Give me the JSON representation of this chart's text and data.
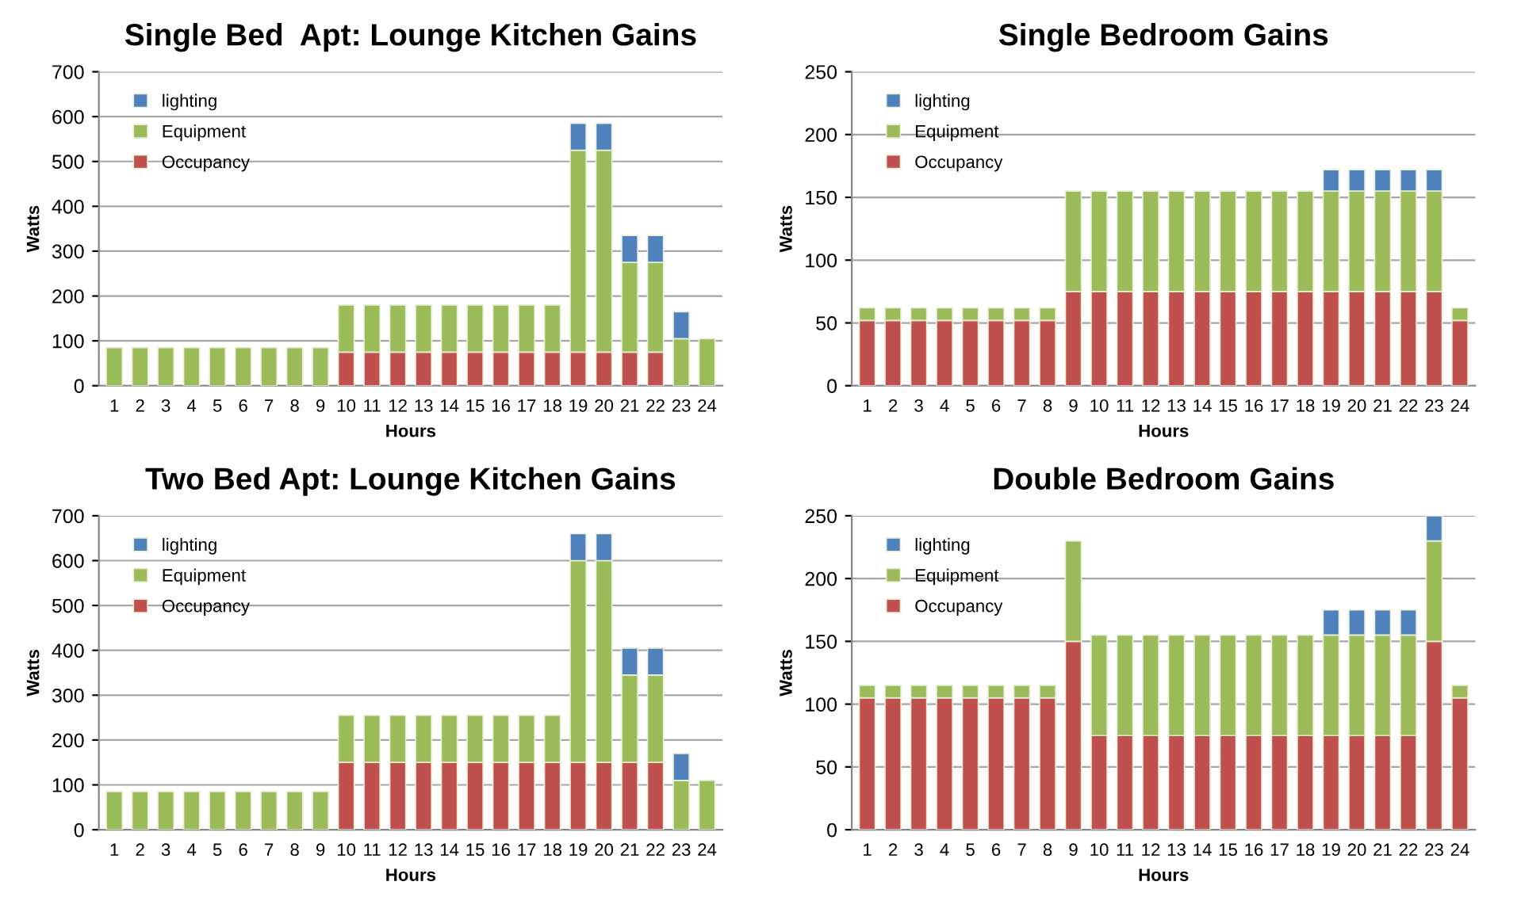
{
  "chart_data": [
    {
      "type": "bar",
      "title": "Single Bed  Apt: Lounge Kitchen Gains",
      "xlabel": "Hours",
      "ylabel": "Watts",
      "stacked": true,
      "grid": "y",
      "legend": "top left",
      "ylim": [
        0,
        700
      ],
      "yticks": [
        0,
        100,
        200,
        300,
        400,
        500,
        600,
        700
      ],
      "categories": [
        "1",
        "2",
        "3",
        "4",
        "5",
        "6",
        "7",
        "8",
        "9",
        "10",
        "11",
        "12",
        "13",
        "14",
        "15",
        "16",
        "17",
        "18",
        "19",
        "20",
        "21",
        "22",
        "23",
        "24"
      ],
      "series": [
        {
          "name": "Occupancy",
          "color": "#c0504d",
          "values": [
            0,
            0,
            0,
            0,
            0,
            0,
            0,
            0,
            0,
            75,
            75,
            75,
            75,
            75,
            75,
            75,
            75,
            75,
            75,
            75,
            75,
            75,
            0,
            0
          ]
        },
        {
          "name": "Equipment",
          "color": "#9bbb59",
          "values": [
            85,
            85,
            85,
            85,
            85,
            85,
            85,
            85,
            85,
            105,
            105,
            105,
            105,
            105,
            105,
            105,
            105,
            105,
            450,
            450,
            200,
            200,
            105,
            105
          ]
        },
        {
          "name": "lighting",
          "color": "#4f81bd",
          "values": [
            0,
            0,
            0,
            0,
            0,
            0,
            0,
            0,
            0,
            0,
            0,
            0,
            0,
            0,
            0,
            0,
            0,
            0,
            60,
            60,
            60,
            60,
            60,
            0
          ]
        }
      ]
    },
    {
      "type": "bar",
      "title": "Single Bedroom Gains",
      "xlabel": "Hours",
      "ylabel": "Watts",
      "stacked": true,
      "grid": "y",
      "legend": "top left",
      "ylim": [
        0,
        250
      ],
      "yticks": [
        0,
        50,
        100,
        150,
        200,
        250
      ],
      "categories": [
        "1",
        "2",
        "3",
        "4",
        "5",
        "6",
        "7",
        "8",
        "9",
        "10",
        "11",
        "12",
        "13",
        "14",
        "15",
        "16",
        "17",
        "18",
        "19",
        "20",
        "21",
        "22",
        "23",
        "24"
      ],
      "series": [
        {
          "name": "Occupancy",
          "color": "#c0504d",
          "values": [
            52,
            52,
            52,
            52,
            52,
            52,
            52,
            52,
            75,
            75,
            75,
            75,
            75,
            75,
            75,
            75,
            75,
            75,
            75,
            75,
            75,
            75,
            75,
            52
          ]
        },
        {
          "name": "Equipment",
          "color": "#9bbb59",
          "values": [
            10,
            10,
            10,
            10,
            10,
            10,
            10,
            10,
            80,
            80,
            80,
            80,
            80,
            80,
            80,
            80,
            80,
            80,
            80,
            80,
            80,
            80,
            80,
            10
          ]
        },
        {
          "name": "lighting",
          "color": "#4f81bd",
          "values": [
            0,
            0,
            0,
            0,
            0,
            0,
            0,
            0,
            0,
            0,
            0,
            0,
            0,
            0,
            0,
            0,
            0,
            0,
            17,
            17,
            17,
            17,
            17,
            0
          ]
        }
      ]
    },
    {
      "type": "bar",
      "title": "Two Bed Apt: Lounge Kitchen Gains",
      "xlabel": "Hours",
      "ylabel": "Watts",
      "stacked": true,
      "grid": "y",
      "legend": "top left",
      "ylim": [
        0,
        700
      ],
      "yticks": [
        0,
        100,
        200,
        300,
        400,
        500,
        600,
        700
      ],
      "categories": [
        "1",
        "2",
        "3",
        "4",
        "5",
        "6",
        "7",
        "8",
        "9",
        "10",
        "11",
        "12",
        "13",
        "14",
        "15",
        "16",
        "17",
        "18",
        "19",
        "20",
        "21",
        "22",
        "23",
        "24"
      ],
      "series": [
        {
          "name": "Occupancy",
          "color": "#c0504d",
          "values": [
            0,
            0,
            0,
            0,
            0,
            0,
            0,
            0,
            0,
            150,
            150,
            150,
            150,
            150,
            150,
            150,
            150,
            150,
            150,
            150,
            150,
            150,
            0,
            0
          ]
        },
        {
          "name": "Equipment",
          "color": "#9bbb59",
          "values": [
            85,
            85,
            85,
            85,
            85,
            85,
            85,
            85,
            85,
            105,
            105,
            105,
            105,
            105,
            105,
            105,
            105,
            105,
            450,
            450,
            195,
            195,
            110,
            110
          ]
        },
        {
          "name": "lighting",
          "color": "#4f81bd",
          "values": [
            0,
            0,
            0,
            0,
            0,
            0,
            0,
            0,
            0,
            0,
            0,
            0,
            0,
            0,
            0,
            0,
            0,
            0,
            60,
            60,
            60,
            60,
            60,
            0
          ]
        }
      ]
    },
    {
      "type": "bar",
      "title": "Double Bedroom Gains",
      "xlabel": "Hours",
      "ylabel": "Watts",
      "stacked": true,
      "grid": "y",
      "legend": "top left",
      "ylim": [
        0,
        250
      ],
      "yticks": [
        0,
        50,
        100,
        150,
        200,
        250
      ],
      "categories": [
        "1",
        "2",
        "3",
        "4",
        "5",
        "6",
        "7",
        "8",
        "9",
        "10",
        "11",
        "12",
        "13",
        "14",
        "15",
        "16",
        "17",
        "18",
        "19",
        "20",
        "21",
        "22",
        "23",
        "24"
      ],
      "series": [
        {
          "name": "Occupancy",
          "color": "#c0504d",
          "values": [
            105,
            105,
            105,
            105,
            105,
            105,
            105,
            105,
            150,
            75,
            75,
            75,
            75,
            75,
            75,
            75,
            75,
            75,
            75,
            75,
            75,
            75,
            150,
            105
          ]
        },
        {
          "name": "Equipment",
          "color": "#9bbb59",
          "values": [
            10,
            10,
            10,
            10,
            10,
            10,
            10,
            10,
            80,
            80,
            80,
            80,
            80,
            80,
            80,
            80,
            80,
            80,
            80,
            80,
            80,
            80,
            80,
            10
          ]
        },
        {
          "name": "lighting",
          "color": "#4f81bd",
          "values": [
            0,
            0,
            0,
            0,
            0,
            0,
            0,
            0,
            0,
            0,
            0,
            0,
            0,
            0,
            0,
            0,
            0,
            0,
            20,
            20,
            20,
            20,
            20,
            0
          ]
        }
      ]
    }
  ]
}
